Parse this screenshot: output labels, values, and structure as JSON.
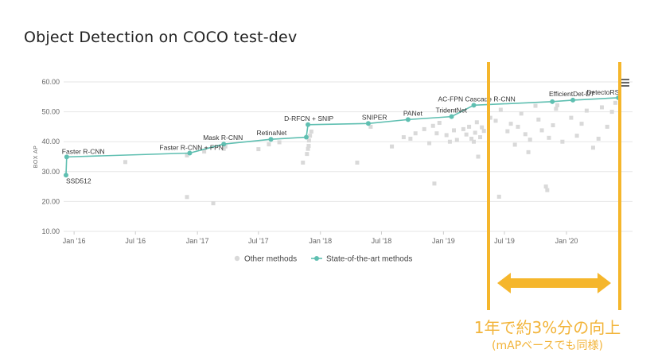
{
  "title": "Object Detection on COCO test-dev",
  "annotation": {
    "main": "1年で約3%分の向上",
    "sub": "(mAPベースでも同様)",
    "color": "#f5b62c"
  },
  "colors": {
    "sota": "#5fbfb1",
    "other": "#d9d9d9"
  },
  "chart_data": {
    "type": "scatter",
    "title": "",
    "xlabel": "",
    "ylabel": "BOX AP",
    "ylim": [
      10,
      60
    ],
    "yticks": [
      "10.00",
      "20.00",
      "30.00",
      "40.00",
      "50.00",
      "60.00"
    ],
    "xticks": [
      {
        "date": "2016-01-01",
        "label": "Jan '16"
      },
      {
        "date": "2016-07-01",
        "label": "Jul '16"
      },
      {
        "date": "2017-01-01",
        "label": "Jan '17"
      },
      {
        "date": "2017-07-01",
        "label": "Jul '17"
      },
      {
        "date": "2018-01-01",
        "label": "Jan '18"
      },
      {
        "date": "2018-07-01",
        "label": "Jul '18"
      },
      {
        "date": "2019-01-01",
        "label": "Jan '19"
      },
      {
        "date": "2019-07-01",
        "label": "Jul '19"
      },
      {
        "date": "2020-01-01",
        "label": "Jan '20"
      }
    ],
    "legend": {
      "position": "bottom",
      "items": [
        "Other methods",
        "State-of-the-art methods"
      ]
    },
    "series": [
      {
        "name": "State-of-the-art methods",
        "points": [
          {
            "x": "2015-12-08",
            "y": 28.8,
            "label": "SSD512"
          },
          {
            "x": "2015-12-10",
            "y": 34.9,
            "label": "Faster R-CNN"
          },
          {
            "x": "2016-12-09",
            "y": 36.2,
            "label": "Faster R-CNN + FPN"
          },
          {
            "x": "2017-03-20",
            "y": 39.2,
            "label": "Mask R-CNN"
          },
          {
            "x": "2017-08-07",
            "y": 40.8,
            "label": "RetinaNet"
          },
          {
            "x": "2017-11-20",
            "y": 41.5,
            "label": ""
          },
          {
            "x": "2017-11-25",
            "y": 45.7,
            "label": "D-RFCN + SNIP"
          },
          {
            "x": "2018-05-23",
            "y": 46.1,
            "label": "SNIPER"
          },
          {
            "x": "2018-09-18",
            "y": 47.4,
            "label": "PANet"
          },
          {
            "x": "2019-01-25",
            "y": 48.4,
            "label": "TridentNet"
          },
          {
            "x": "2019-04-01",
            "y": 52.2,
            "label": "AC-FPN Cascade R-CNN"
          },
          {
            "x": "2019-11-20",
            "y": 53.4,
            "label": ""
          },
          {
            "x": "2020-01-20",
            "y": 53.9,
            "label": "EfficientDet-D7"
          },
          {
            "x": "2020-06-03",
            "y": 54.7,
            "label": "DetectoRS"
          }
        ]
      },
      {
        "name": "Other methods",
        "points": [
          {
            "x": "2016-06-01",
            "y": 33.2
          },
          {
            "x": "2016-12-01",
            "y": 21.5
          },
          {
            "x": "2016-12-01",
            "y": 35.4
          },
          {
            "x": "2017-01-21",
            "y": 36.7
          },
          {
            "x": "2017-02-17",
            "y": 19.4
          },
          {
            "x": "2017-03-20",
            "y": 37.6
          },
          {
            "x": "2017-03-25",
            "y": 38.4
          },
          {
            "x": "2017-07-01",
            "y": 37.5
          },
          {
            "x": "2017-08-01",
            "y": 39.1
          },
          {
            "x": "2017-09-01",
            "y": 39.8
          },
          {
            "x": "2017-11-10",
            "y": 33.0
          },
          {
            "x": "2017-11-22",
            "y": 35.9
          },
          {
            "x": "2017-11-25",
            "y": 37.6
          },
          {
            "x": "2017-11-27",
            "y": 38.6
          },
          {
            "x": "2017-11-28",
            "y": 40.4
          },
          {
            "x": "2017-12-01",
            "y": 42.0
          },
          {
            "x": "2017-12-05",
            "y": 43.4
          },
          {
            "x": "2018-04-20",
            "y": 33.0
          },
          {
            "x": "2018-05-30",
            "y": 45.0
          },
          {
            "x": "2018-08-01",
            "y": 38.4
          },
          {
            "x": "2018-09-05",
            "y": 41.5
          },
          {
            "x": "2018-09-25",
            "y": 41.0
          },
          {
            "x": "2018-10-10",
            "y": 42.8
          },
          {
            "x": "2018-11-05",
            "y": 44.2
          },
          {
            "x": "2018-11-20",
            "y": 39.5
          },
          {
            "x": "2018-12-01",
            "y": 45.3
          },
          {
            "x": "2018-12-05",
            "y": 26.0
          },
          {
            "x": "2018-12-12",
            "y": 42.8
          },
          {
            "x": "2018-12-20",
            "y": 46.3
          },
          {
            "x": "2019-01-10",
            "y": 42.2
          },
          {
            "x": "2019-01-20",
            "y": 40.0
          },
          {
            "x": "2019-02-01",
            "y": 43.8
          },
          {
            "x": "2019-02-10",
            "y": 40.6
          },
          {
            "x": "2019-03-01",
            "y": 44.2
          },
          {
            "x": "2019-03-10",
            "y": 42.4
          },
          {
            "x": "2019-03-18",
            "y": 45.0
          },
          {
            "x": "2019-03-25",
            "y": 41.0
          },
          {
            "x": "2019-04-01",
            "y": 40.0
          },
          {
            "x": "2019-04-05",
            "y": 43.0
          },
          {
            "x": "2019-04-10",
            "y": 46.5
          },
          {
            "x": "2019-04-14",
            "y": 35.0
          },
          {
            "x": "2019-04-20",
            "y": 41.5
          },
          {
            "x": "2019-04-25",
            "y": 44.8
          },
          {
            "x": "2019-05-01",
            "y": 43.6
          },
          {
            "x": "2019-05-20",
            "y": 48.0
          },
          {
            "x": "2019-06-05",
            "y": 47.0
          },
          {
            "x": "2019-06-15",
            "y": 21.6
          },
          {
            "x": "2019-06-20",
            "y": 50.7
          },
          {
            "x": "2019-07-10",
            "y": 43.5
          },
          {
            "x": "2019-07-20",
            "y": 46.0
          },
          {
            "x": "2019-08-01",
            "y": 39.0
          },
          {
            "x": "2019-08-10",
            "y": 45.0
          },
          {
            "x": "2019-08-20",
            "y": 49.4
          },
          {
            "x": "2019-09-01",
            "y": 42.5
          },
          {
            "x": "2019-09-10",
            "y": 36.5
          },
          {
            "x": "2019-09-15",
            "y": 40.7
          },
          {
            "x": "2019-10-01",
            "y": 52.0
          },
          {
            "x": "2019-10-10",
            "y": 47.4
          },
          {
            "x": "2019-10-20",
            "y": 43.8
          },
          {
            "x": "2019-11-01",
            "y": 25.0
          },
          {
            "x": "2019-11-05",
            "y": 23.8
          },
          {
            "x": "2019-11-10",
            "y": 41.3
          },
          {
            "x": "2019-11-22",
            "y": 45.5
          },
          {
            "x": "2019-12-01",
            "y": 51.0
          },
          {
            "x": "2019-12-05",
            "y": 52.2
          },
          {
            "x": "2019-12-20",
            "y": 40.0
          },
          {
            "x": "2020-01-15",
            "y": 48.0
          },
          {
            "x": "2020-02-01",
            "y": 42.0
          },
          {
            "x": "2020-02-15",
            "y": 46.0
          },
          {
            "x": "2020-03-01",
            "y": 50.4
          },
          {
            "x": "2020-03-20",
            "y": 38.0
          },
          {
            "x": "2020-04-05",
            "y": 41.0
          },
          {
            "x": "2020-04-15",
            "y": 51.5
          },
          {
            "x": "2020-05-01",
            "y": 45.0
          },
          {
            "x": "2020-05-15",
            "y": 50.0
          },
          {
            "x": "2020-05-25",
            "y": 53.0
          }
        ]
      }
    ]
  }
}
